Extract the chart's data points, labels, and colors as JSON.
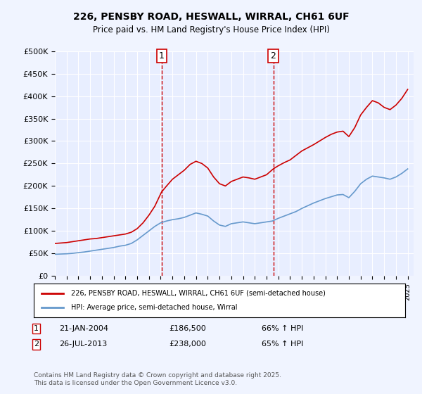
{
  "title": "226, PENSBY ROAD, HESWALL, WIRRAL, CH61 6UF",
  "subtitle": "Price paid vs. HM Land Registry's House Price Index (HPI)",
  "ylabel_ticks": [
    "£0",
    "£50K",
    "£100K",
    "£150K",
    "£200K",
    "£250K",
    "£300K",
    "£350K",
    "£400K",
    "£450K",
    "£500K"
  ],
  "ytick_values": [
    0,
    50000,
    100000,
    150000,
    200000,
    250000,
    300000,
    350000,
    400000,
    450000,
    500000
  ],
  "ylim": [
    0,
    500000
  ],
  "xlim_start": 1995.0,
  "xlim_end": 2025.5,
  "background_color": "#f0f4ff",
  "plot_bg_color": "#e8eeff",
  "grid_color": "#ffffff",
  "red_line_color": "#cc0000",
  "blue_line_color": "#6699cc",
  "vline_color": "#cc0000",
  "marker1_x": 2004.07,
  "marker2_x": 2013.57,
  "marker1_label": "1",
  "marker2_label": "2",
  "transaction1_date": "21-JAN-2004",
  "transaction1_price": "£186,500",
  "transaction1_hpi": "66% ↑ HPI",
  "transaction2_date": "26-JUL-2013",
  "transaction2_price": "£238,000",
  "transaction2_hpi": "65% ↑ HPI",
  "legend_line1": "226, PENSBY ROAD, HESWALL, WIRRAL, CH61 6UF (semi-detached house)",
  "legend_line2": "HPI: Average price, semi-detached house, Wirral",
  "footer": "Contains HM Land Registry data © Crown copyright and database right 2025.\nThis data is licensed under the Open Government Licence v3.0.",
  "red_x": [
    1995.0,
    1995.5,
    1996.0,
    1996.5,
    1997.0,
    1997.5,
    1998.0,
    1998.5,
    1999.0,
    1999.5,
    2000.0,
    2000.5,
    2001.0,
    2001.5,
    2002.0,
    2002.5,
    2003.0,
    2003.5,
    2004.07,
    2004.5,
    2005.0,
    2005.5,
    2006.0,
    2006.5,
    2007.0,
    2007.5,
    2008.0,
    2008.5,
    2009.0,
    2009.5,
    2010.0,
    2010.5,
    2011.0,
    2011.5,
    2012.0,
    2012.5,
    2013.0,
    2013.57,
    2014.0,
    2014.5,
    2015.0,
    2015.5,
    2016.0,
    2016.5,
    2017.0,
    2017.5,
    2018.0,
    2018.5,
    2019.0,
    2019.5,
    2020.0,
    2020.5,
    2021.0,
    2021.5,
    2022.0,
    2022.5,
    2023.0,
    2023.5,
    2024.0,
    2024.5,
    2025.0
  ],
  "red_y": [
    72000,
    73000,
    74000,
    76000,
    78000,
    80000,
    82000,
    83000,
    85000,
    87000,
    89000,
    91000,
    93000,
    97000,
    105000,
    118000,
    135000,
    155000,
    186500,
    200000,
    215000,
    225000,
    235000,
    248000,
    255000,
    250000,
    240000,
    220000,
    205000,
    200000,
    210000,
    215000,
    220000,
    218000,
    215000,
    220000,
    225000,
    238000,
    245000,
    252000,
    258000,
    268000,
    278000,
    285000,
    292000,
    300000,
    308000,
    315000,
    320000,
    322000,
    310000,
    330000,
    358000,
    375000,
    390000,
    385000,
    375000,
    370000,
    380000,
    395000,
    415000
  ],
  "blue_x": [
    1995.0,
    1995.5,
    1996.0,
    1996.5,
    1997.0,
    1997.5,
    1998.0,
    1998.5,
    1999.0,
    1999.5,
    2000.0,
    2000.5,
    2001.0,
    2001.5,
    2002.0,
    2002.5,
    2003.0,
    2003.5,
    2004.0,
    2004.5,
    2005.0,
    2005.5,
    2006.0,
    2006.5,
    2007.0,
    2007.5,
    2008.0,
    2008.5,
    2009.0,
    2009.5,
    2010.0,
    2010.5,
    2011.0,
    2011.5,
    2012.0,
    2012.5,
    2013.0,
    2013.5,
    2014.0,
    2014.5,
    2015.0,
    2015.5,
    2016.0,
    2016.5,
    2017.0,
    2017.5,
    2018.0,
    2018.5,
    2019.0,
    2019.5,
    2020.0,
    2020.5,
    2021.0,
    2021.5,
    2022.0,
    2022.5,
    2023.0,
    2023.5,
    2024.0,
    2024.5,
    2025.0
  ],
  "blue_y": [
    48000,
    48500,
    49000,
    50000,
    51500,
    53000,
    55000,
    57000,
    59000,
    61000,
    63000,
    66000,
    68000,
    72000,
    80000,
    90000,
    100000,
    110000,
    118000,
    122000,
    125000,
    127000,
    130000,
    135000,
    140000,
    137000,
    133000,
    122000,
    113000,
    110000,
    116000,
    118000,
    120000,
    118000,
    116000,
    118000,
    120000,
    122000,
    128000,
    133000,
    138000,
    143000,
    150000,
    156000,
    162000,
    167000,
    172000,
    176000,
    180000,
    181000,
    174000,
    188000,
    205000,
    215000,
    222000,
    220000,
    218000,
    215000,
    220000,
    228000,
    238000
  ]
}
